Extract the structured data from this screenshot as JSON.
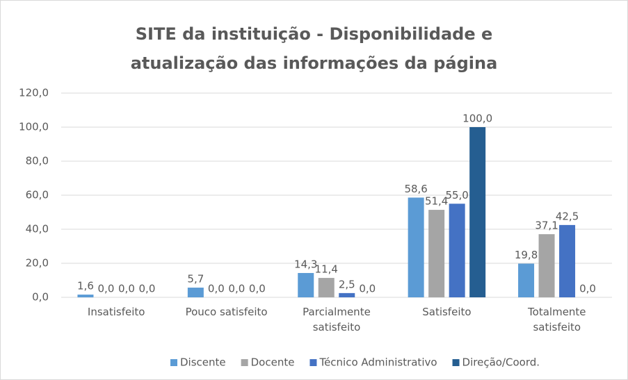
{
  "chart_data": {
    "type": "bar",
    "title": "SITE da instituição - Disponibilidade e atualização das informações da página",
    "categories": [
      "Insatisfeito",
      "Pouco satisfeito",
      "Parcialmente satisfeito",
      "Satisfeito",
      "Totalmente satisfeito"
    ],
    "series": [
      {
        "name": "Discente",
        "color": "#5B9BD5",
        "values": [
          1.6,
          5.7,
          14.3,
          58.6,
          19.8
        ],
        "value_labels": [
          "1,6",
          "5,7",
          "14,3",
          "58,6",
          "19,8"
        ]
      },
      {
        "name": "Docente",
        "color": "#A5A5A5",
        "values": [
          0,
          0,
          11.4,
          51.4,
          37.1
        ],
        "value_labels": [
          "0,0",
          "0,0",
          "11,4",
          "51,4",
          "37,1"
        ]
      },
      {
        "name": "Técnico Administrativo",
        "color": "#4472C4",
        "values": [
          0,
          0,
          2.5,
          55.0,
          42.5
        ],
        "value_labels": [
          "0,0",
          "0,0",
          "2,5",
          "55,0",
          "42,5"
        ]
      },
      {
        "name": "Direção/Coord.",
        "color": "#255E91",
        "values": [
          0,
          0,
          0,
          100.0,
          0
        ],
        "value_labels": [
          "0,0",
          "0,0",
          "0,0",
          "100,0",
          "0,0"
        ]
      }
    ],
    "ylim": [
      0,
      120
    ],
    "yticks": [
      {
        "value": 0,
        "label": "0,0"
      },
      {
        "value": 20,
        "label": "20,0"
      },
      {
        "value": 40,
        "label": "40,0"
      },
      {
        "value": 60,
        "label": "60,0"
      },
      {
        "value": 80,
        "label": "80,0"
      },
      {
        "value": 100,
        "label": "100,0"
      },
      {
        "value": 120,
        "label": "120,0"
      }
    ],
    "grid": true,
    "legend": "bottom"
  }
}
